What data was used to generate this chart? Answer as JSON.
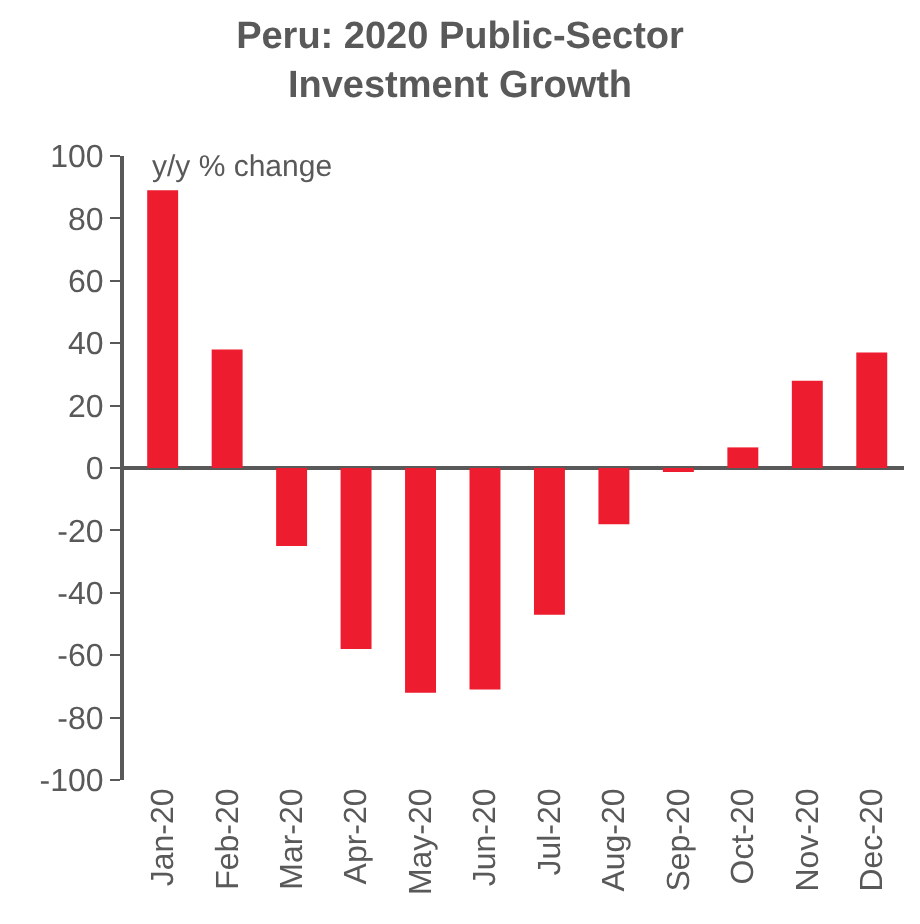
{
  "chart_data": {
    "type": "bar",
    "title": "Peru: 2020 Public-Sector Investment Growth",
    "categories": [
      "Jan-20",
      "Feb-20",
      "Mar-20",
      "Apr-20",
      "May-20",
      "Jun-20",
      "Jul-20",
      "Aug-20",
      "Sep-20",
      "Oct-20",
      "Nov-20",
      "Dec-20"
    ],
    "values": [
      89,
      38,
      -25,
      -58,
      -72,
      -71,
      -47,
      -18,
      -1,
      6.6,
      28,
      37
    ],
    "color": "#ed1c2e",
    "ylim": [
      -100,
      100
    ],
    "yticks": [
      -100,
      -80,
      -60,
      -40,
      -20,
      0,
      20,
      40,
      60,
      80,
      100
    ],
    "annotations": [
      "y/y % change"
    ]
  }
}
